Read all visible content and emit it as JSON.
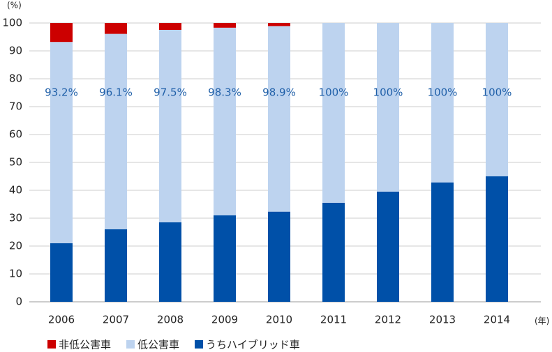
{
  "chart_data": {
    "type": "bar",
    "y_label": "(%)",
    "x_label": "(年)",
    "categories": [
      "2006",
      "2007",
      "2008",
      "2009",
      "2010",
      "2011",
      "2012",
      "2013",
      "2014"
    ],
    "series": [
      {
        "name": "非低公害車",
        "color": "#cc0000",
        "values": [
          6.8,
          3.9,
          2.5,
          1.7,
          1.1,
          0,
          0,
          0,
          0
        ]
      },
      {
        "name": "低公害車",
        "color": "#bdd3ef",
        "values": [
          93.2,
          96.1,
          97.5,
          98.3,
          98.9,
          100,
          100,
          100,
          100
        ],
        "value_labels": [
          "93.2%",
          "96.1%",
          "97.5%",
          "98.3%",
          "98.9%",
          "100%",
          "100%",
          "100%",
          "100%"
        ]
      },
      {
        "name": "うちハイブリッド車",
        "color": "#0050a8",
        "values": [
          21,
          26,
          28.5,
          31,
          32.3,
          35.5,
          39.5,
          42.8,
          45
        ]
      }
    ],
    "ylim": [
      0,
      100
    ],
    "yticks": [
      0,
      10,
      20,
      30,
      40,
      50,
      60,
      70,
      80,
      90,
      100
    ],
    "grid": true
  }
}
